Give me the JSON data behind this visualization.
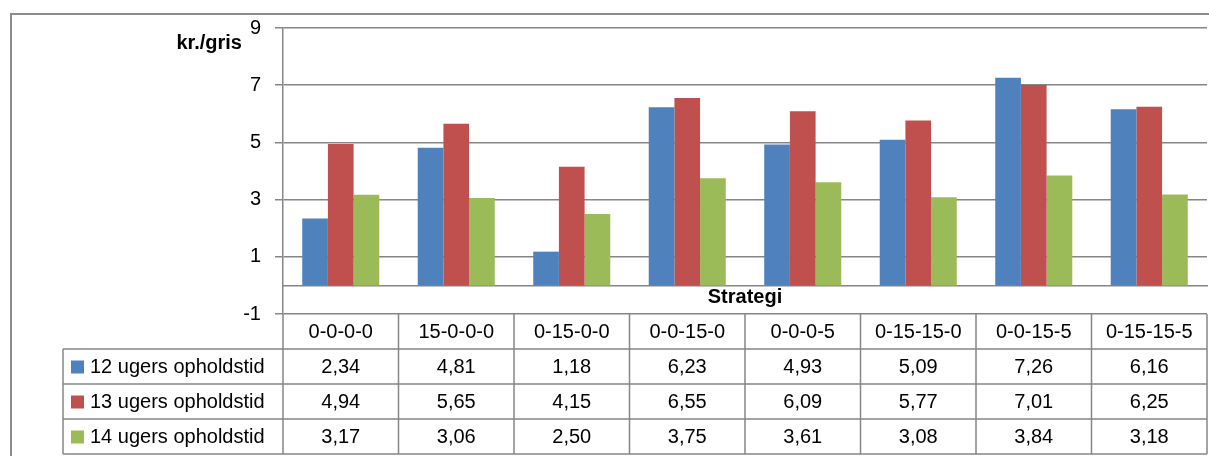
{
  "chart_data": {
    "type": "bar",
    "ylabel": "kr./gris",
    "xlabel": "Strategi",
    "categories": [
      "0-0-0-0",
      "15-0-0-0",
      "0-15-0-0",
      "0-0-15-0",
      "0-0-0-5",
      "0-15-15-0",
      "0-0-15-5",
      "0-15-15-5"
    ],
    "series": [
      {
        "name": "12 ugers opholdstid",
        "color": "#4f81bd",
        "values": [
          2.34,
          4.81,
          1.18,
          6.23,
          4.93,
          5.09,
          7.26,
          6.16
        ],
        "value_labels": [
          "2,34",
          "4,81",
          "1,18",
          "6,23",
          "4,93",
          "5,09",
          "7,26",
          "6,16"
        ]
      },
      {
        "name": "13 ugers opholdstid",
        "color": "#c0504d",
        "values": [
          4.94,
          5.65,
          4.15,
          6.55,
          6.09,
          5.77,
          7.01,
          6.25
        ],
        "value_labels": [
          "4,94",
          "5,65",
          "4,15",
          "6,55",
          "6,09",
          "5,77",
          "7,01",
          "6,25"
        ]
      },
      {
        "name": "14 ugers opholdstid",
        "color": "#9bbb59",
        "values": [
          3.17,
          3.06,
          2.5,
          3.75,
          3.61,
          3.08,
          3.84,
          3.18
        ],
        "value_labels": [
          "3,17",
          "3,06",
          "2,50",
          "3,75",
          "3,61",
          "3,08",
          "3,84",
          "3,18"
        ]
      }
    ],
    "ylim": [
      -1,
      9
    ],
    "yticks": [
      -1,
      1,
      3,
      5,
      7,
      9
    ],
    "grid": "y",
    "legend": "bottom left"
  }
}
